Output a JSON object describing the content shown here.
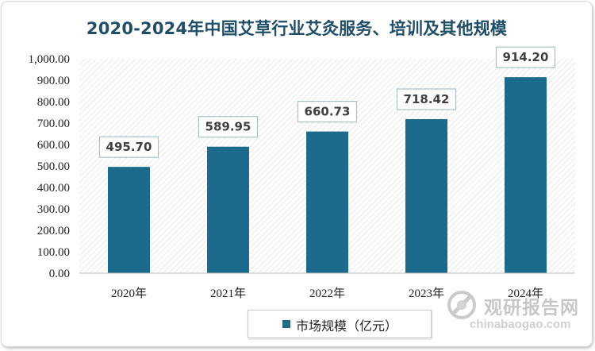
{
  "chart_data": {
    "type": "bar",
    "title": "2020-2024年中国艾草行业艾灸服务、培训及其他规模",
    "categories": [
      "2020年",
      "2021年",
      "2022年",
      "2023年",
      "2024年"
    ],
    "series": [
      {
        "name": "市场规模（亿元）",
        "values": [
          495.7,
          589.95,
          660.73,
          718.42,
          914.2
        ]
      }
    ],
    "data_labels": [
      "495.70",
      "589.95",
      "660.73",
      "718.42",
      "914.20"
    ],
    "ylim": [
      0,
      1000
    ],
    "yticks": [
      "0.00",
      "100.00",
      "200.00",
      "300.00",
      "400.00",
      "500.00",
      "600.00",
      "700.00",
      "800.00",
      "900.00",
      "1,000.00"
    ],
    "xlabel": "",
    "ylabel": "",
    "legend_position": "bottom",
    "grid": false,
    "colors": {
      "bar": "#1c6b8c",
      "title": "#1f4e69"
    }
  },
  "watermark": {
    "name_cn": "观研报告网",
    "domain": "chinabaogao.com"
  }
}
